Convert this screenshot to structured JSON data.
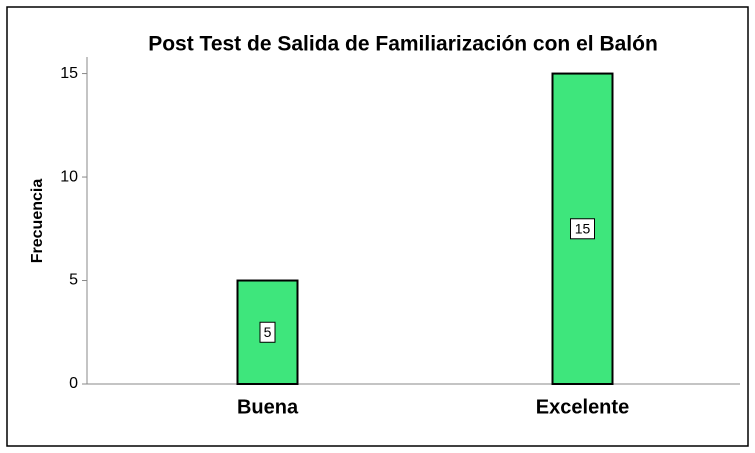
{
  "chart_data": {
    "type": "bar",
    "title": "Post Test de Salida de Familiarización con el Balón",
    "y_label": "Frecuencia",
    "categories": [
      "Buena",
      "Excelente"
    ],
    "values": [
      5,
      15
    ],
    "color": "#3ee67c",
    "ylim": [
      0,
      15.8
    ],
    "yticks": [
      0,
      5,
      10,
      15
    ],
    "grid": false
  }
}
